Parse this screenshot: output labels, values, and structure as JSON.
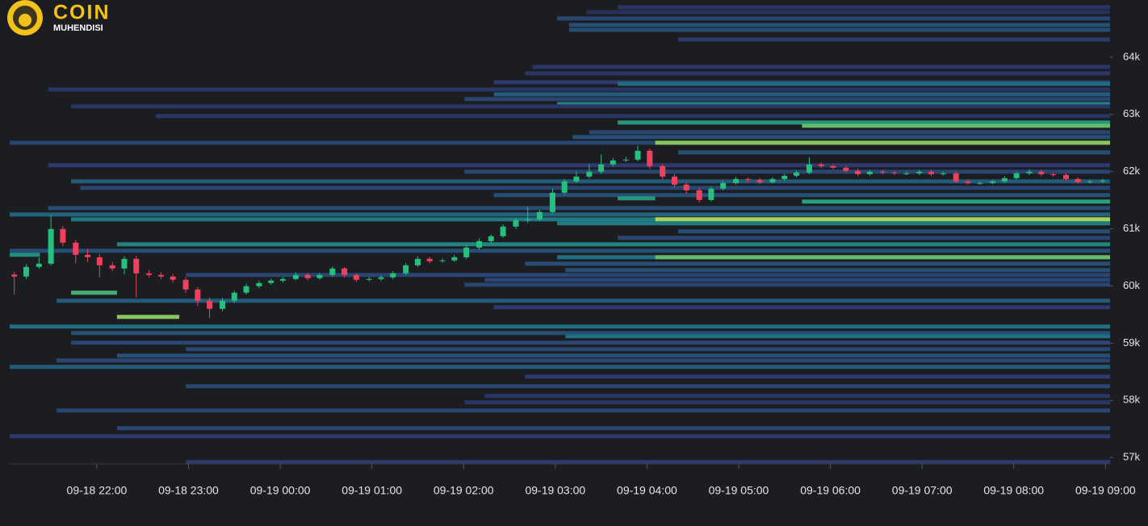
{
  "chart_data": {
    "type": "candlestick",
    "title": "COIN",
    "subtitle": "MUHENDISI",
    "x": [
      21.1,
      21.23,
      21.37,
      21.5,
      21.63,
      21.77,
      21.9,
      22.03,
      22.17,
      22.3,
      22.43,
      22.57,
      22.7,
      22.83,
      22.97,
      23.1,
      23.23,
      23.37,
      23.5,
      23.63,
      23.77,
      23.9,
      24.03,
      24.17,
      24.3,
      24.43,
      24.57,
      24.7,
      24.83,
      24.97,
      25.1,
      25.23,
      25.37,
      25.5,
      25.63,
      25.77,
      25.9,
      26.03,
      26.17,
      26.3,
      26.43,
      26.57,
      26.7,
      26.83,
      26.97,
      27.1,
      27.23,
      27.37,
      27.5,
      27.63,
      27.77,
      27.9,
      28.03,
      28.17,
      28.3,
      28.43,
      28.57,
      28.7,
      28.83,
      28.97,
      29.1,
      29.23,
      29.37,
      29.5,
      29.63,
      29.77,
      29.9,
      30.03,
      30.17,
      30.3,
      30.43,
      30.57,
      30.7,
      30.83,
      30.97,
      31.1,
      31.23,
      31.37,
      31.5,
      31.63,
      31.77,
      31.9,
      32.03,
      32.17,
      32.3,
      32.43,
      32.57,
      32.7,
      32.83,
      32.97
    ],
    "open": [
      60200,
      60165,
      60334,
      60390,
      60997,
      60757,
      60545,
      60503,
      60362,
      60306,
      60475,
      60221,
      60193,
      60165,
      60108,
      59939,
      59742,
      59601,
      59742,
      59883,
      59996,
      60052,
      60094,
      60122,
      60193,
      60137,
      60193,
      60306,
      60193,
      60108,
      60122,
      60151,
      60221,
      60362,
      60475,
      60433,
      60447,
      60503,
      60672,
      60785,
      60870,
      61039,
      61152,
      61166,
      61293,
      61631,
      61829,
      61913,
      61998,
      62125,
      62195,
      62209,
      62364,
      62096,
      61913,
      61772,
      61673,
      61504,
      61702,
      61800,
      61871,
      61857,
      61814,
      61871,
      61927,
      61984,
      62125,
      62096,
      62068,
      62012,
      61955,
      61998,
      61984,
      61970,
      61970,
      61998,
      61955,
      61970,
      61829,
      61800,
      61800,
      61829,
      61885,
      61970,
      61998,
      61955,
      61941,
      61871,
      61814,
      61829
    ],
    "high": [
      60250,
      60380,
      60500,
      61240,
      61050,
      60800,
      60650,
      60560,
      60420,
      60520,
      60530,
      60280,
      60240,
      60210,
      60150,
      59980,
      59800,
      59790,
      59920,
      60040,
      60090,
      60130,
      60160,
      60240,
      60230,
      60230,
      60340,
      60330,
      60220,
      60160,
      60190,
      60260,
      60400,
      60520,
      60510,
      60480,
      60540,
      60710,
      60830,
      60900,
      61080,
      61190,
      61380,
      61330,
      61700,
      61870,
      62000,
      62130,
      62300,
      62240,
      62260,
      62450,
      62400,
      62130,
      61960,
      61810,
      61720,
      61740,
      61840,
      61910,
      61900,
      61890,
      61900,
      61960,
      62020,
      62250,
      62160,
      62130,
      62100,
      62050,
      62030,
      62030,
      62010,
      62000,
      62030,
      62030,
      62000,
      62000,
      61860,
      61830,
      61860,
      61920,
      62000,
      62040,
      62030,
      61980,
      61970,
      61900,
      61860,
      61870
    ],
    "low": [
      59850,
      60120,
      60300,
      60360,
      60700,
      60400,
      60420,
      60150,
      60260,
      60200,
      59800,
      60150,
      60120,
      60060,
      59880,
      59650,
      59440,
      59560,
      59700,
      59850,
      59960,
      60020,
      60060,
      60100,
      60100,
      60110,
      60160,
      60150,
      60070,
      60080,
      60090,
      60120,
      60190,
      60330,
      60400,
      60410,
      60420,
      60470,
      60640,
      60750,
      60840,
      61000,
      61100,
      61130,
      61260,
      61600,
      61800,
      61880,
      61960,
      62090,
      62170,
      62180,
      62050,
      61870,
      61720,
      61620,
      61460,
      61480,
      61670,
      61770,
      61820,
      61780,
      61790,
      61840,
      61900,
      61950,
      62060,
      62040,
      61980,
      61920,
      61930,
      61950,
      61940,
      61940,
      61940,
      61920,
      61930,
      61800,
      61770,
      61770,
      61780,
      61800,
      61860,
      61940,
      61920,
      61910,
      61840,
      61790,
      61790,
      61800
    ],
    "close": [
      60165,
      60334,
      60390,
      60997,
      60757,
      60545,
      60503,
      60362,
      60306,
      60475,
      60221,
      60193,
      60165,
      60108,
      59939,
      59742,
      59601,
      59742,
      59883,
      59996,
      60052,
      60094,
      60122,
      60193,
      60137,
      60193,
      60306,
      60193,
      60108,
      60122,
      60151,
      60221,
      60362,
      60475,
      60433,
      60447,
      60503,
      60672,
      60785,
      60870,
      61039,
      61152,
      61166,
      61293,
      61631,
      61829,
      61913,
      61998,
      62125,
      62195,
      62209,
      62364,
      62096,
      61913,
      61772,
      61673,
      61504,
      61702,
      61800,
      61871,
      61857,
      61814,
      61871,
      61927,
      61984,
      62125,
      62096,
      62068,
      62012,
      61955,
      61998,
      61984,
      61970,
      61970,
      61998,
      61955,
      61970,
      61829,
      61800,
      61800,
      61829,
      61885,
      61970,
      61998,
      61955,
      61941,
      61871,
      61814,
      61829,
      61843
    ],
    "up_color": "#26c07e",
    "down_color": "#f0405e",
    "heatmap": {
      "price": [
        64874,
        64789,
        64677,
        64564,
        64479,
        64310,
        63831,
        63718,
        63563,
        63535,
        63436,
        63351,
        63267,
        63182,
        63140,
        62971,
        62858,
        62802,
        62689,
        62604,
        62505,
        62505,
        62336,
        62111,
        61998,
        61829,
        61716,
        61589,
        61533,
        61476,
        61363,
        61250,
        61166,
        61166,
        61096,
        60955,
        60842,
        60729,
        60616,
        60546,
        60503,
        60503,
        60390,
        60278,
        60193,
        60108,
        60024,
        59883,
        59742,
        59629,
        59460,
        59291,
        59178,
        59122,
        59009,
        58896,
        58783,
        58698,
        58586,
        58416,
        58247,
        58078,
        57965,
        57824,
        57514,
        57373,
        56922
      ],
      "start": [
        27.68,
        27.34,
        27.02,
        27.15,
        27.15,
        28.34,
        26.75,
        26.67,
        26.33,
        27.68,
        21.47,
        26.33,
        26.01,
        27.02,
        21.72,
        22.64,
        27.68,
        29.69,
        27.37,
        27.19,
        21.05,
        28.09,
        28.34,
        21.47,
        26.01,
        21.72,
        21.82,
        26.33,
        27.68,
        29.69,
        21.47,
        21.05,
        21.72,
        28.09,
        27.02,
        28.34,
        27.68,
        22.22,
        21.05,
        21.05,
        27.02,
        28.09,
        26.67,
        27.11,
        22.97,
        26.23,
        26.01,
        21.72,
        21.56,
        26.33,
        22.22,
        21.05,
        21.72,
        27.11,
        21.72,
        22.97,
        22.22,
        21.56,
        21.05,
        26.67,
        22.97,
        26.23,
        26.01,
        21.56,
        22.22,
        21.05,
        22.97
      ],
      "end": [
        null,
        null,
        null,
        null,
        null,
        null,
        null,
        null,
        null,
        null,
        null,
        null,
        null,
        null,
        null,
        null,
        null,
        null,
        null,
        null,
        null,
        null,
        null,
        null,
        null,
        null,
        null,
        null,
        28.09,
        null,
        null,
        null,
        null,
        null,
        null,
        null,
        null,
        null,
        null,
        21.38,
        null,
        null,
        null,
        null,
        null,
        null,
        null,
        22.22,
        null,
        null,
        22.9,
        null,
        null,
        null,
        null,
        null,
        null,
        null,
        null,
        null,
        null,
        null,
        null,
        null,
        null,
        null,
        null
      ],
      "intensity": [
        0.2,
        0.15,
        0.3,
        0.35,
        0.35,
        0.25,
        0.2,
        0.2,
        0.25,
        0.5,
        0.2,
        0.4,
        0.3,
        0.6,
        0.2,
        0.2,
        0.7,
        0.85,
        0.3,
        0.35,
        0.3,
        0.9,
        0.35,
        0.25,
        0.3,
        0.4,
        0.3,
        0.35,
        0.7,
        0.75,
        0.35,
        0.45,
        0.55,
        0.95,
        0.55,
        0.35,
        0.3,
        0.6,
        0.35,
        0.65,
        0.5,
        0.85,
        0.35,
        0.35,
        0.3,
        0.3,
        0.3,
        0.8,
        0.4,
        0.25,
        0.9,
        0.5,
        0.35,
        0.5,
        0.3,
        0.3,
        0.35,
        0.3,
        0.4,
        0.25,
        0.3,
        0.2,
        0.2,
        0.3,
        0.3,
        0.25,
        0.25
      ],
      "colorscale": [
        "#1f2142",
        "#2c3a6e",
        "#1f6f82",
        "#27a17f",
        "#c8e04a"
      ]
    },
    "xlim": [
      21.05,
      33.05
    ],
    "xticks": [
      {
        "value": 22,
        "label": "09-18 22:00"
      },
      {
        "value": 23,
        "label": "09-18 23:00"
      },
      {
        "value": 24,
        "label": "09-19 00:00"
      },
      {
        "value": 25,
        "label": "09-19 01:00"
      },
      {
        "value": 26,
        "label": "09-19 02:00"
      },
      {
        "value": 27,
        "label": "09-19 03:00"
      },
      {
        "value": 28,
        "label": "09-19 04:00"
      },
      {
        "value": 29,
        "label": "09-19 05:00"
      },
      {
        "value": 30,
        "label": "09-19 06:00"
      },
      {
        "value": 31,
        "label": "09-19 07:00"
      },
      {
        "value": 32,
        "label": "09-19 08:00"
      },
      {
        "value": 33,
        "label": "09-19 09:00"
      }
    ],
    "ylim": [
      56890,
      65000
    ],
    "yticks": [
      {
        "value": 57000,
        "label": "57k"
      },
      {
        "value": 58000,
        "label": "58k"
      },
      {
        "value": 59000,
        "label": "59k"
      },
      {
        "value": 60000,
        "label": "60k"
      },
      {
        "value": 61000,
        "label": "61k"
      },
      {
        "value": 62000,
        "label": "62k"
      },
      {
        "value": 63000,
        "label": "63k"
      },
      {
        "value": 64000,
        "label": "64k"
      }
    ]
  }
}
